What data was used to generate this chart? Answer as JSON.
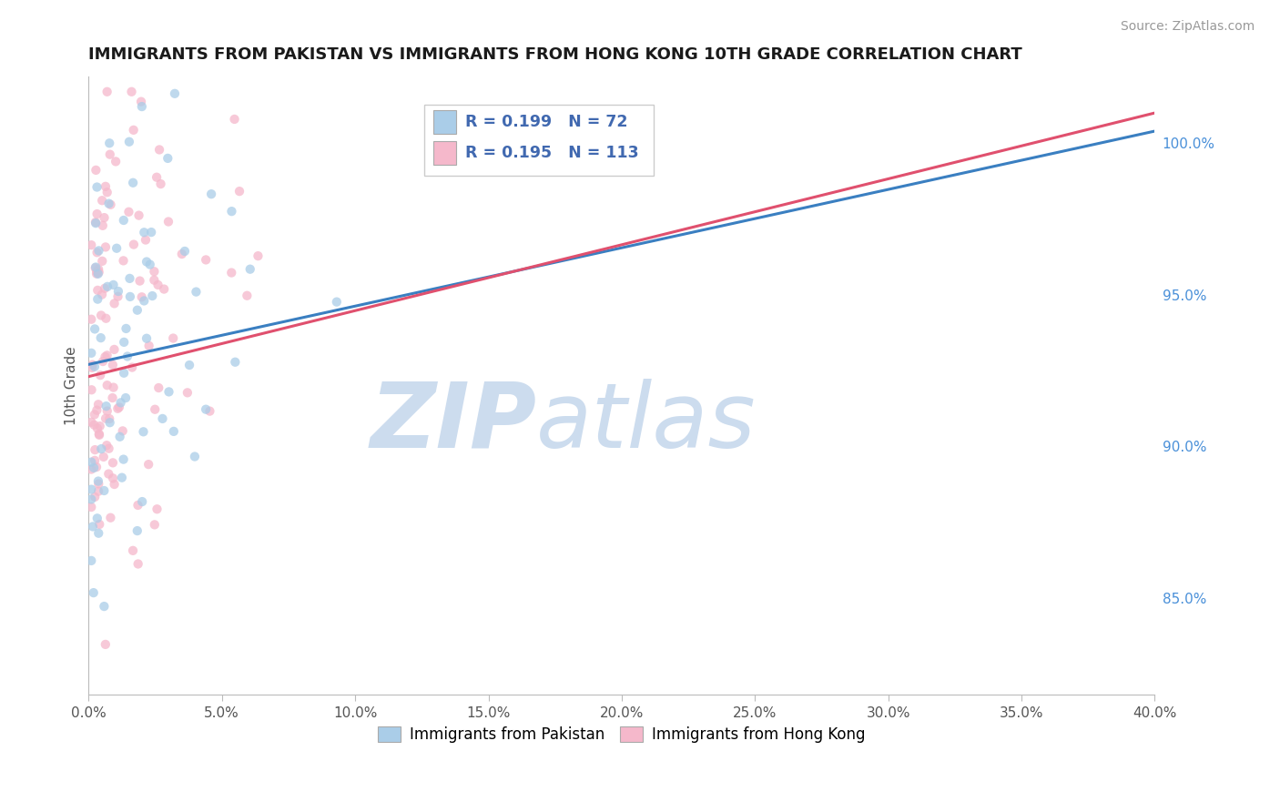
{
  "title": "IMMIGRANTS FROM PAKISTAN VS IMMIGRANTS FROM HONG KONG 10TH GRADE CORRELATION CHART",
  "source": "Source: ZipAtlas.com",
  "ylabel": "10th Grade",
  "xmin": 0.0,
  "xmax": 0.4,
  "ymin": 0.818,
  "ymax": 1.022,
  "series1_label": "Immigrants from Pakistan",
  "series1_R": 0.199,
  "series1_N": 72,
  "series1_color": "#aacde8",
  "series1_trend_color": "#3a7fc1",
  "series2_label": "Immigrants from Hong Kong",
  "series2_R": 0.195,
  "series2_N": 113,
  "series2_color": "#f5b8cb",
  "series2_trend_color": "#e0506e",
  "legend_color": "#4169b0",
  "watermark_zip": "ZIP",
  "watermark_atlas": "atlas",
  "watermark_color": "#ccdcee",
  "background_color": "#ffffff",
  "grid_color": "#e8e8e8",
  "right_ytick_color": "#4a90d9",
  "right_yticks": [
    0.85,
    0.9,
    0.95,
    1.0
  ],
  "right_ytick_labels": [
    "85.0%",
    "90.0%",
    "95.0%",
    "100.0%"
  ],
  "title_fontsize": 13,
  "source_fontsize": 10,
  "dot_size": 55,
  "dot_alpha": 0.75
}
